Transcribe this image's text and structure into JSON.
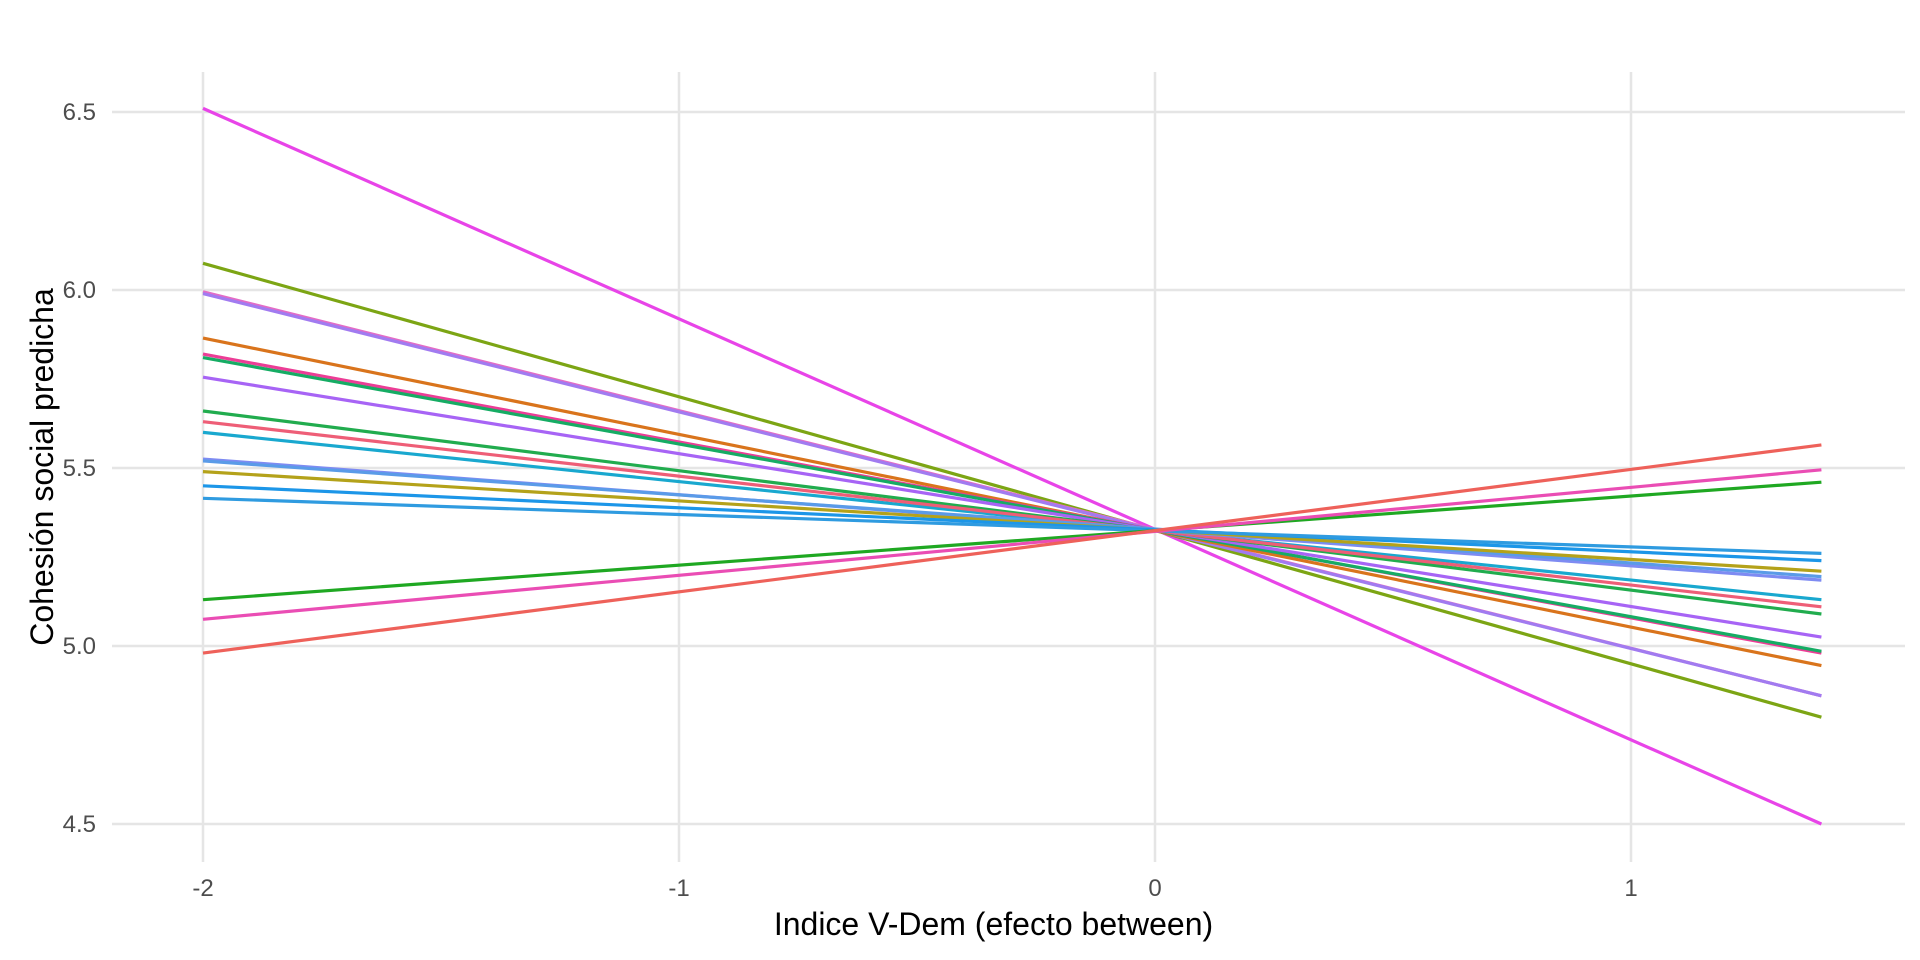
{
  "chart_data": {
    "type": "line",
    "title": "",
    "xlabel": "Indice V-Dem (efecto between)",
    "ylabel": "Cohesión social predicha",
    "xlim": [
      -2.2,
      1.58
    ],
    "ylim": [
      4.41,
      6.6
    ],
    "xticks": [
      "-2",
      "-1",
      "0",
      "1"
    ],
    "yticks": [
      "4.5",
      "5.0",
      "5.5",
      "6.0",
      "6.5"
    ],
    "grid": true,
    "legend": "none",
    "x": [
      -2,
      1.4
    ],
    "series": [
      {
        "color": "#E844E8",
        "values": [
          6.51,
          4.5
        ]
      },
      {
        "color": "#7CA514",
        "values": [
          6.075,
          4.8
        ]
      },
      {
        "color": "#E36CC6",
        "values": [
          5.995,
          4.86
        ]
      },
      {
        "color": "#A17BF0",
        "values": [
          5.99,
          4.86
        ]
      },
      {
        "color": "#D9741C",
        "values": [
          5.865,
          4.945
        ]
      },
      {
        "color": "#EC3D96",
        "values": [
          5.82,
          4.98
        ]
      },
      {
        "color": "#16AC64",
        "values": [
          5.81,
          4.985
        ]
      },
      {
        "color": "#A764F5",
        "values": [
          5.755,
          5.025
        ]
      },
      {
        "color": "#21AC4E",
        "values": [
          5.66,
          5.09
        ]
      },
      {
        "color": "#19A8CF",
        "values": [
          5.6,
          5.13
        ]
      },
      {
        "color": "#EE5E77",
        "values": [
          5.63,
          5.11
        ]
      },
      {
        "color": "#7E8BF2",
        "values": [
          5.525,
          5.185
        ]
      },
      {
        "color": "#5A9BE8",
        "values": [
          5.52,
          5.195
        ]
      },
      {
        "color": "#B4A21A",
        "values": [
          5.49,
          5.21
        ]
      },
      {
        "color": "#1C96E8",
        "values": [
          5.45,
          5.24
        ]
      },
      {
        "color": "#2F9BE0",
        "values": [
          5.415,
          5.26
        ]
      },
      {
        "color": "#1FA822",
        "values": [
          5.13,
          5.46
        ]
      },
      {
        "color": "#EA4DB4",
        "values": [
          5.075,
          5.495
        ]
      },
      {
        "color": "#EE615A",
        "values": [
          4.98,
          5.565
        ]
      }
    ]
  }
}
